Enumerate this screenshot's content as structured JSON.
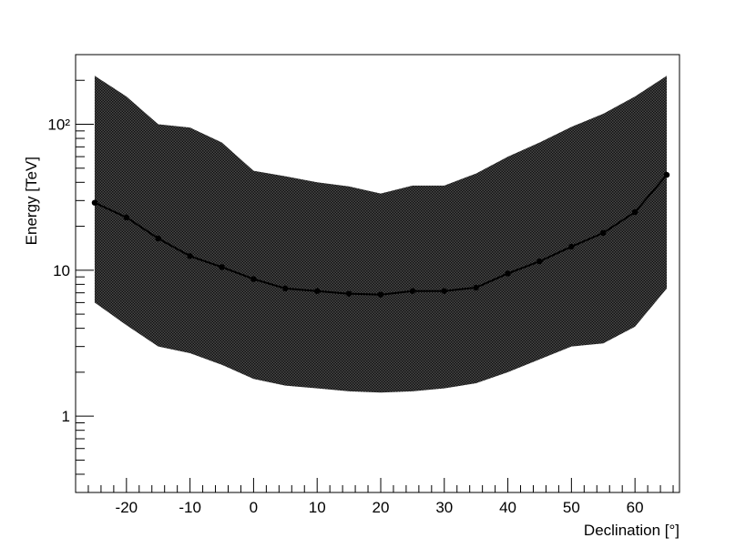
{
  "chart_data": {
    "type": "line",
    "xlabel": "Declination [°]",
    "ylabel": "Energy [TeV]",
    "xlim": [
      -28,
      67
    ],
    "ylim": [
      0.3,
      300
    ],
    "yscale": "log",
    "grid": false,
    "legend": "none",
    "x_ticks": [
      -20,
      -10,
      0,
      10,
      20,
      30,
      40,
      50,
      60
    ],
    "x_tick_labels": [
      "-20",
      "-10",
      "0",
      "10",
      "20",
      "30",
      "40",
      "50",
      "60"
    ],
    "y_ticks": [
      1,
      10,
      100
    ],
    "y_tick_labels": [
      "1",
      "10",
      "10²"
    ],
    "band": {
      "x": [
        -25,
        -20,
        -15,
        -10,
        -5,
        0,
        5,
        10,
        15,
        20,
        25,
        30,
        35,
        40,
        45,
        50,
        55,
        60,
        65
      ],
      "upper": [
        215,
        155,
        100,
        95,
        75,
        48,
        44,
        40,
        37.5,
        33.5,
        38,
        38,
        46,
        60,
        75,
        96,
        118,
        155,
        215
      ],
      "lower": [
        6.0,
        4.2,
        3.0,
        2.7,
        2.25,
        1.8,
        1.62,
        1.55,
        1.48,
        1.45,
        1.48,
        1.55,
        1.68,
        2.0,
        2.45,
        3.0,
        3.15,
        4.1,
        7.5
      ]
    },
    "series": [
      {
        "x": [
          -25,
          -20,
          -15,
          -10,
          -5,
          0,
          5,
          10,
          15,
          20,
          25,
          30,
          35,
          40,
          45,
          50,
          55,
          60,
          65
        ],
        "y": [
          29,
          23,
          16.5,
          12.5,
          10.5,
          8.7,
          7.5,
          7.2,
          6.9,
          6.8,
          7.2,
          7.2,
          7.6,
          9.5,
          11.5,
          14.5,
          18,
          25,
          45
        ]
      }
    ],
    "colors": {
      "band": "#3a3a3a",
      "line": "#000000",
      "frame": "#000000"
    }
  }
}
